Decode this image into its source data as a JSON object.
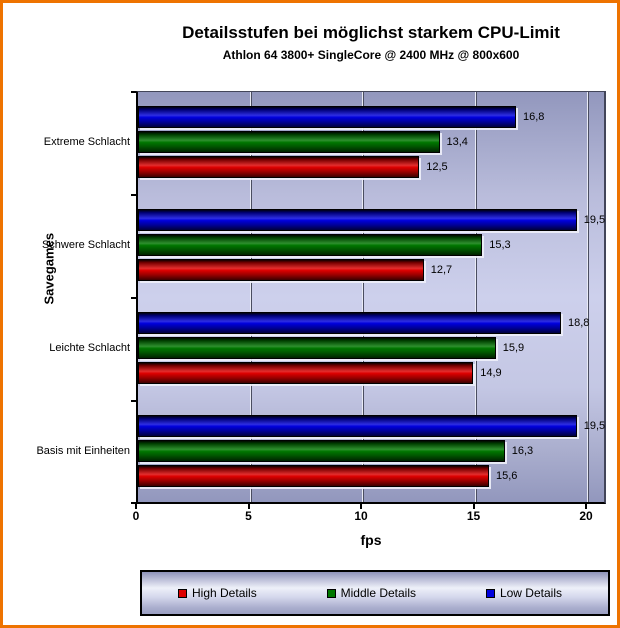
{
  "frame_color": "#ee7300",
  "chart_data": {
    "type": "bar",
    "orientation": "horizontal",
    "title": "Detailsstufen bei möglichst starkem CPU-Limit",
    "subtitle": "Athlon 64 3800+ SingleCore @ 2400 MHz @ 800x600",
    "xlabel": "fps",
    "ylabel": "Savegames",
    "xlim": [
      0,
      20.9
    ],
    "xticks": [
      0,
      5,
      10,
      15,
      20
    ],
    "grid": true,
    "legend_position": "bottom",
    "categories": [
      "Extreme Schlacht",
      "Schwere Schlacht",
      "Leichte Schlacht",
      "Basis mit Einheiten"
    ],
    "series": [
      {
        "name": "High Details",
        "color": "#dd0000",
        "values": [
          12.5,
          12.7,
          14.9,
          15.6
        ],
        "labels": [
          "12,5",
          "12,7",
          "14,9",
          "15,6"
        ]
      },
      {
        "name": "Middle Details",
        "color": "#007700",
        "values": [
          13.4,
          15.3,
          15.9,
          16.3
        ],
        "labels": [
          "13,4",
          "15,3",
          "15,9",
          "16,3"
        ]
      },
      {
        "name": "Low Details",
        "color": "#0000dd",
        "values": [
          16.8,
          19.5,
          18.8,
          19.5
        ],
        "labels": [
          "16,8",
          "19,5",
          "18,8",
          "19,5"
        ]
      }
    ]
  }
}
